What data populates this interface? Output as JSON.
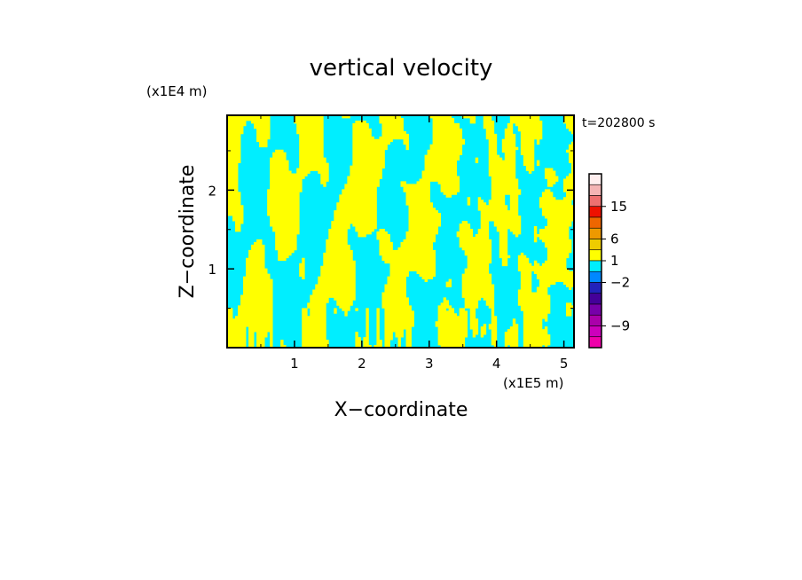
{
  "chart_data": {
    "type": "heatmap",
    "title": "vertical velocity",
    "xlabel": "X−coordinate",
    "ylabel": "Z−coordinate",
    "x_unit": "(x1E5 m)",
    "y_unit": "(x1E4 m)",
    "time_label": "t=202800 s",
    "xlim": [
      0,
      5.15
    ],
    "ylim": [
      0,
      2.95
    ],
    "x_ticks": [
      "1",
      "2",
      "3",
      "4",
      "5"
    ],
    "x_tick_values": [
      1,
      2,
      3,
      4,
      5
    ],
    "y_ticks": [
      "1",
      "2"
    ],
    "y_tick_values": [
      1,
      2
    ],
    "field_colors": {
      "positive": "#ffff00",
      "negative": "#00eeff"
    },
    "colorbar": {
      "tick_labels": [
        "15",
        "6",
        "1",
        "−2",
        "−9"
      ],
      "tick_values": [
        15,
        6,
        1,
        -2,
        -9
      ],
      "bands_top_to_bottom": [
        "#ffeeee",
        "#f4b4b4",
        "#ee7070",
        "#ee1100",
        "#ee6600",
        "#ee9900",
        "#eecc00",
        "#ffff00",
        "#00eeff",
        "#0088ff",
        "#2222bb",
        "#440099",
        "#7700aa",
        "#aa00aa",
        "#cc00bb",
        "#ee00aa"
      ]
    }
  }
}
